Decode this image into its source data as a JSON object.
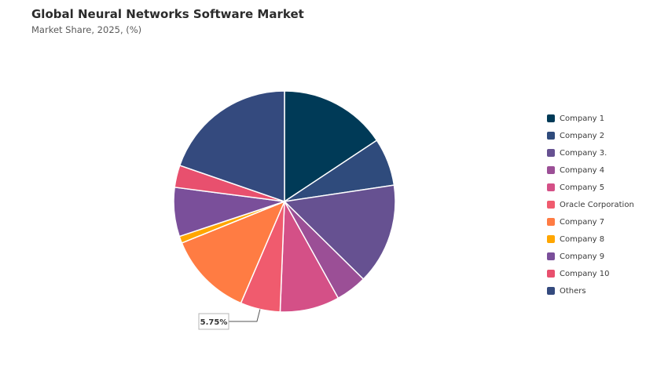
{
  "header": {
    "title": "Global Neural Networks Software Market",
    "subtitle": "Market Share, 2025, (%)"
  },
  "chart_data": {
    "type": "pie",
    "title": "Global Neural Networks Software Market",
    "subtitle": "Market Share, 2025, (%)",
    "legend_position": "right",
    "slice_border_color": "#ffffff",
    "slices": [
      {
        "label": "Company 1",
        "value": 15.5,
        "color": "#003a57"
      },
      {
        "label": "Company 2",
        "value": 6.9,
        "color": "#2f4b7c"
      },
      {
        "label": "Company 3.",
        "value": 14.6,
        "color": "#665191"
      },
      {
        "label": "Company 4",
        "value": 4.5,
        "color": "#9b4f96"
      },
      {
        "label": "Company 5",
        "value": 8.6,
        "color": "#d45087"
      },
      {
        "label": "Oracle Corporation",
        "value": 5.75,
        "color": "#f05b6e",
        "data_label": "5.75%"
      },
      {
        "label": "Company 7",
        "value": 12.3,
        "color": "#ff7c43"
      },
      {
        "label": "Company 8",
        "value": 1.0,
        "color": "#ffa600"
      },
      {
        "label": "Company 9",
        "value": 7.1,
        "color": "#7a4f9a"
      },
      {
        "label": "Company 10",
        "value": 3.2,
        "color": "#e8506e"
      },
      {
        "label": "Others",
        "value": 19.5,
        "color": "#344a7e"
      }
    ]
  }
}
